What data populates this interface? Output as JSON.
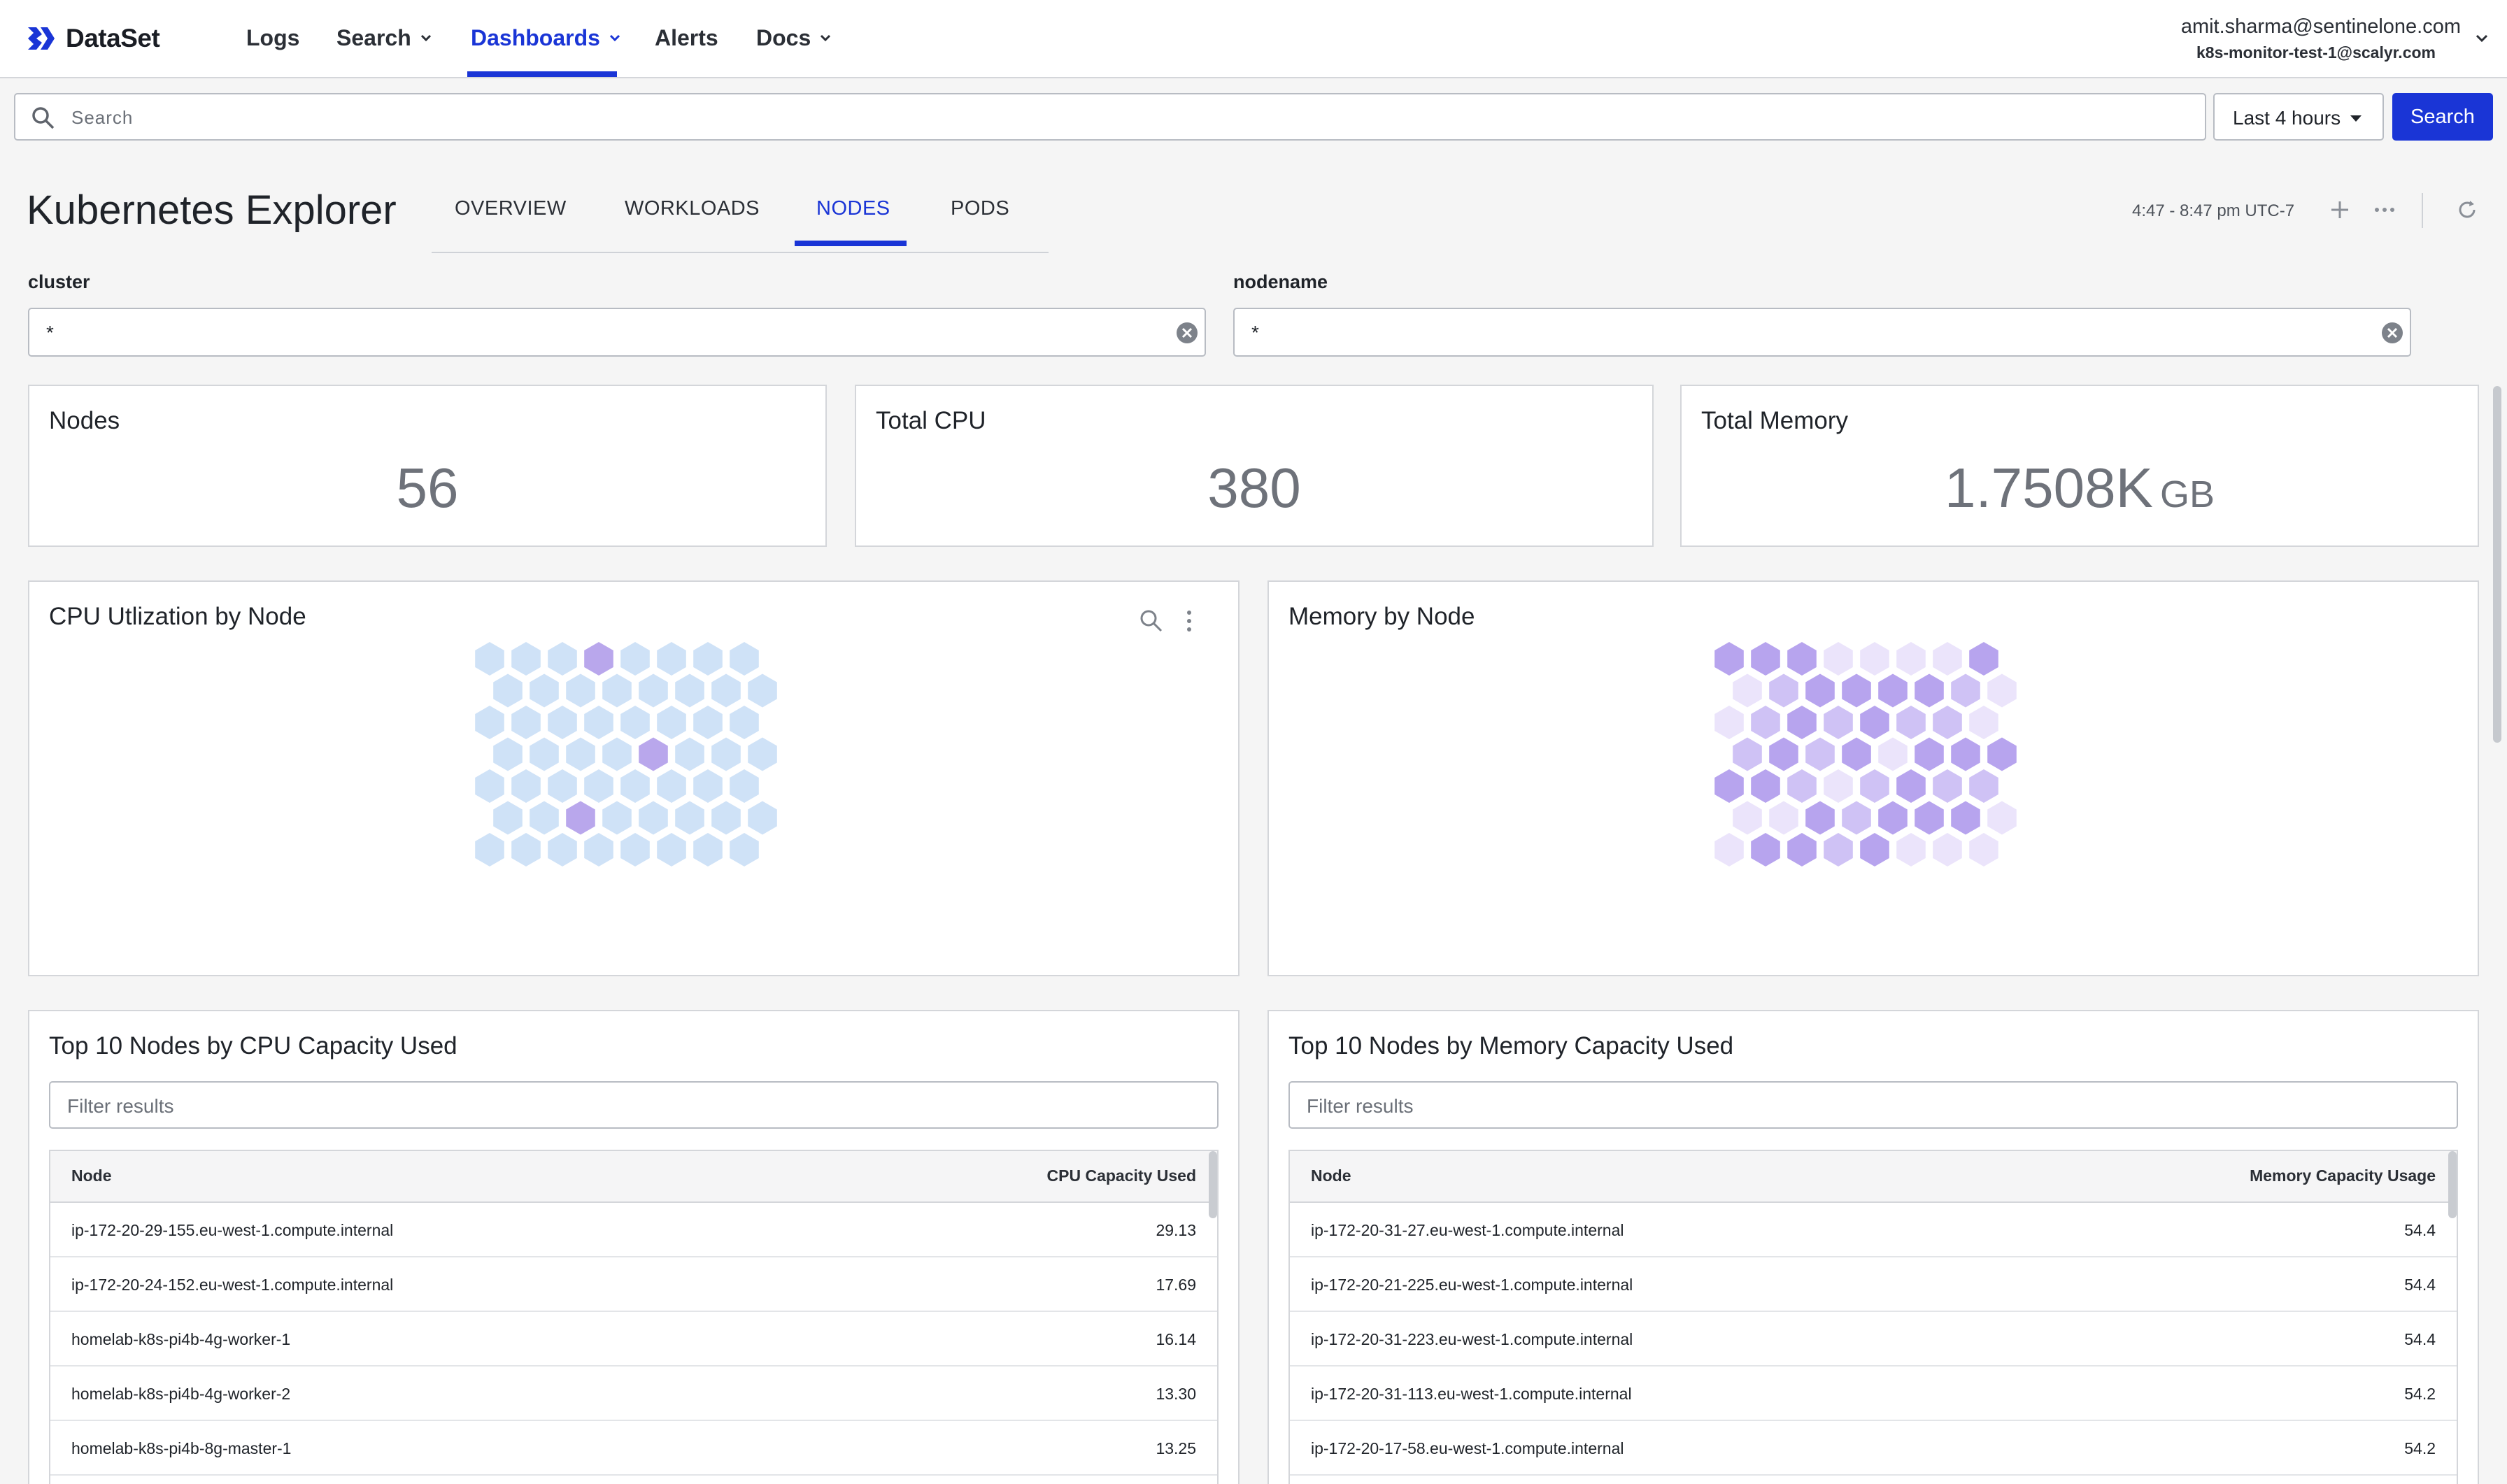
{
  "app": {
    "brand": "DataSet",
    "accent_color": "#1a35d6"
  },
  "nav": {
    "items": [
      {
        "label": "Logs",
        "has_menu": false,
        "active": false
      },
      {
        "label": "Search",
        "has_menu": true,
        "active": false
      },
      {
        "label": "Dashboards",
        "has_menu": true,
        "active": true
      },
      {
        "label": "Alerts",
        "has_menu": false,
        "active": false
      },
      {
        "label": "Docs",
        "has_menu": true,
        "active": false
      }
    ],
    "user_email": "amit.sharma@sentinelone.com",
    "user_account": "k8s-monitor-test-1@scalyr.com"
  },
  "search": {
    "placeholder": "Search",
    "time_range": "Last 4 hours",
    "button_label": "Search"
  },
  "dashboard": {
    "title": "Kubernetes Explorer",
    "tabs": [
      {
        "label": "OVERVIEW",
        "active": false
      },
      {
        "label": "WORKLOADS",
        "active": false
      },
      {
        "label": "NODES",
        "active": true
      },
      {
        "label": "PODS",
        "active": false
      }
    ],
    "time_range_text": "4:47 - 8:47 pm UTC-7",
    "icons": [
      "plus-icon",
      "more-icon",
      "refresh-icon"
    ]
  },
  "filters": [
    {
      "label": "cluster",
      "value": "*"
    },
    {
      "label": "nodename",
      "value": "*"
    }
  ],
  "stats": [
    {
      "title": "Nodes",
      "value": "56",
      "unit": ""
    },
    {
      "title": "Total CPU",
      "value": "380",
      "unit": ""
    },
    {
      "title": "Total Memory",
      "value": "1.7508K",
      "unit": "GB"
    }
  ],
  "hex_panels": [
    {
      "title": "CPU Utlization by Node",
      "palette": [
        "#cfe2f7",
        "#c4ccf5",
        "#b9a7ec"
      ],
      "levels": [
        [
          0,
          0,
          0,
          2,
          0,
          0,
          0,
          0
        ],
        [
          0,
          0,
          0,
          0,
          0,
          0,
          0,
          0
        ],
        [
          0,
          0,
          0,
          0,
          0,
          0,
          0,
          0
        ],
        [
          0,
          0,
          0,
          0,
          2,
          0,
          0,
          0
        ],
        [
          0,
          0,
          0,
          0,
          0,
          0,
          0,
          0
        ],
        [
          0,
          0,
          2,
          0,
          0,
          0,
          0,
          0
        ],
        [
          0,
          0,
          0,
          0,
          0,
          0,
          0,
          0
        ]
      ]
    },
    {
      "title": "Memory by Node",
      "palette": [
        "#ebe4fb",
        "#cfc2f5",
        "#b7a4ee"
      ],
      "levels": [
        [
          2,
          2,
          2,
          0,
          0,
          0,
          0,
          2
        ],
        [
          0,
          1,
          2,
          2,
          2,
          2,
          1,
          0
        ],
        [
          0,
          1,
          2,
          1,
          2,
          1,
          1,
          0
        ],
        [
          1,
          2,
          1,
          2,
          0,
          2,
          2,
          2
        ],
        [
          2,
          2,
          1,
          0,
          1,
          2,
          1,
          1
        ],
        [
          0,
          0,
          2,
          1,
          2,
          2,
          2,
          0
        ],
        [
          0,
          2,
          2,
          1,
          2,
          0,
          0,
          0
        ]
      ]
    }
  ],
  "tables": [
    {
      "title": "Top 10 Nodes by CPU Capacity Used",
      "filter_placeholder": "Filter results",
      "columns": [
        "Node",
        "CPU Capacity Used"
      ],
      "rows": [
        [
          "ip-172-20-29-155.eu-west-1.compute.internal",
          "29.13"
        ],
        [
          "ip-172-20-24-152.eu-west-1.compute.internal",
          "17.69"
        ],
        [
          "homelab-k8s-pi4b-4g-worker-1",
          "16.14"
        ],
        [
          "homelab-k8s-pi4b-4g-worker-2",
          "13.30"
        ],
        [
          "homelab-k8s-pi4b-8g-master-1",
          "13.25"
        ]
      ]
    },
    {
      "title": "Top 10 Nodes by Memory Capacity Used",
      "filter_placeholder": "Filter results",
      "columns": [
        "Node",
        "Memory Capacity Usage"
      ],
      "rows": [
        [
          "ip-172-20-31-27.eu-west-1.compute.internal",
          "54.4"
        ],
        [
          "ip-172-20-21-225.eu-west-1.compute.internal",
          "54.4"
        ],
        [
          "ip-172-20-31-223.eu-west-1.compute.internal",
          "54.4"
        ],
        [
          "ip-172-20-31-113.eu-west-1.compute.internal",
          "54.2"
        ],
        [
          "ip-172-20-17-58.eu-west-1.compute.internal",
          "54.2"
        ]
      ]
    }
  ]
}
